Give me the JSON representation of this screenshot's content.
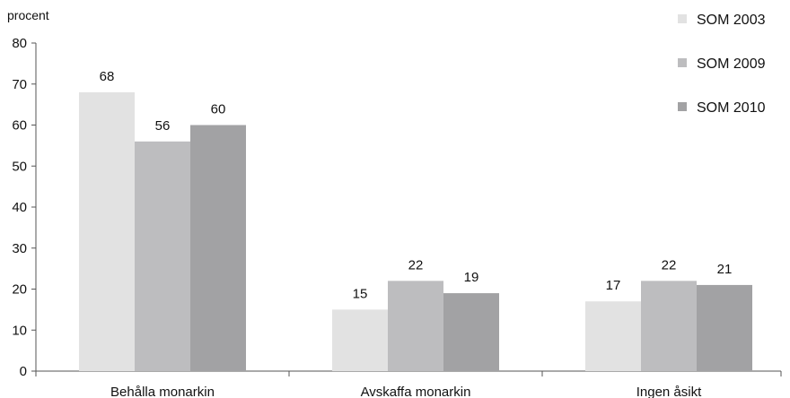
{
  "chart_data": {
    "type": "bar",
    "ylabel": "procent",
    "ylim": [
      0,
      80
    ],
    "yticks": [
      0,
      10,
      20,
      30,
      40,
      50,
      60,
      70,
      80
    ],
    "categories": [
      "Behålla monarkin",
      "Avskaffa monarkin",
      "Ingen åsikt"
    ],
    "series": [
      {
        "name": "SOM 2003",
        "values": [
          68,
          15,
          17
        ],
        "color": "#e2e2e2"
      },
      {
        "name": "SOM 2009",
        "values": [
          56,
          22,
          22
        ],
        "color": "#bdbdbf"
      },
      {
        "name": "SOM 2010",
        "values": [
          60,
          19,
          21
        ],
        "color": "#a2a2a4"
      }
    ],
    "grid": false,
    "legend": "top-right",
    "data_labels": true
  }
}
